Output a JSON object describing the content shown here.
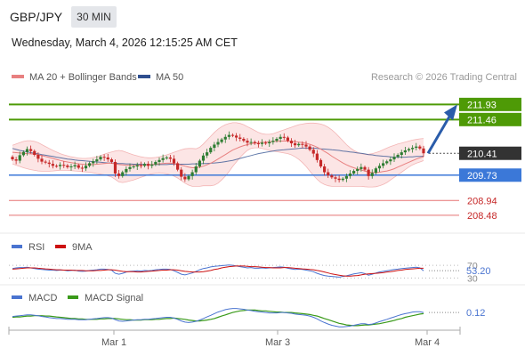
{
  "header": {
    "symbol": "GBP/JPY",
    "timeframe": "30 MIN",
    "timestamp": "Wednesday, March 4, 2026 12:15:25 AM CET"
  },
  "legend": {
    "ma20": "MA 20 + Bollinger Bands",
    "ma50": "MA 50",
    "credit": "Research © 2026 Trading Central"
  },
  "colors": {
    "resistance": "#4e9a06",
    "pivot": "#3b78d8",
    "support": "#e57373",
    "current": "#333333",
    "arrow": "#2a5caa",
    "ma20": "#e88080",
    "ma50": "#2f4f8f",
    "candle_up": "#2e7d32",
    "candle_down": "#c62828",
    "band_fill": "#fbdcdc",
    "rsi": "#4a74d0",
    "rsi_ma": "#cc1111",
    "macd": "#4a74d0",
    "macd_signal": "#3a9a1a"
  },
  "chart_data": {
    "type": "candlestick",
    "x_ticks": [
      "Mar 1",
      "Mar 3",
      "Mar 4"
    ],
    "ylim": [
      208.2,
      212.3
    ],
    "levels": [
      {
        "value": 211.93,
        "label": "211.93",
        "kind": "resistance"
      },
      {
        "value": 211.46,
        "label": "211.46",
        "kind": "resistance"
      },
      {
        "value": 210.41,
        "label": "210.41",
        "kind": "current"
      },
      {
        "value": 209.73,
        "label": "209.73",
        "kind": "pivot"
      },
      {
        "value": 208.94,
        "label": "208.94",
        "kind": "support"
      },
      {
        "value": 208.48,
        "label": "208.48",
        "kind": "support"
      }
    ],
    "close": [
      210.22,
      210.18,
      210.35,
      210.45,
      210.54,
      210.48,
      210.36,
      210.24,
      210.15,
      210.12,
      210.08,
      210.02,
      210.01,
      210.05,
      210.03,
      209.98,
      210.0,
      210.04,
      209.96,
      209.94,
      210.02,
      210.1,
      210.16,
      210.22,
      210.3,
      210.28,
      210.22,
      210.14,
      209.78,
      209.7,
      209.82,
      209.92,
      209.98,
      210.0,
      210.04,
      210.02,
      210.08,
      210.02,
      210.06,
      210.14,
      210.2,
      210.26,
      210.28,
      210.24,
      210.1,
      209.9,
      209.68,
      209.6,
      209.7,
      209.82,
      210.0,
      210.18,
      210.34,
      210.44,
      210.58,
      210.68,
      210.76,
      210.84,
      210.92,
      210.98,
      210.96,
      210.9,
      210.86,
      210.8,
      210.74,
      210.76,
      210.72,
      210.7,
      210.74,
      210.72,
      210.76,
      210.8,
      210.86,
      210.92,
      210.9,
      210.8,
      210.72,
      210.66,
      210.7,
      210.68,
      210.62,
      210.52,
      210.4,
      210.2,
      210.0,
      209.82,
      209.72,
      209.66,
      209.62,
      209.58,
      209.62,
      209.7,
      209.78,
      209.86,
      209.92,
      209.98,
      209.9,
      209.7,
      209.8,
      209.94,
      210.02,
      210.1,
      210.16,
      210.22,
      210.3,
      210.36,
      210.44,
      210.5,
      210.54,
      210.58,
      210.62,
      210.56,
      210.41
    ],
    "ma20": [
      210.44,
      210.43,
      210.42,
      210.41,
      210.4,
      210.39,
      210.38,
      210.36,
      210.34,
      210.31,
      210.28,
      210.25,
      210.22,
      210.19,
      210.16,
      210.14,
      210.12,
      210.1,
      210.08,
      210.07,
      210.06,
      210.06,
      210.06,
      210.07,
      210.08,
      210.09,
      210.1,
      210.1,
      210.08,
      210.06,
      210.05,
      210.04,
      210.04,
      210.04,
      210.04,
      210.04,
      210.04,
      210.05,
      210.06,
      210.07,
      210.08,
      210.09,
      210.1,
      210.1,
      210.09,
      210.07,
      210.04,
      210.01,
      209.98,
      209.96,
      209.96,
      209.98,
      210.01,
      210.05,
      210.1,
      210.16,
      210.23,
      210.3,
      210.37,
      210.44,
      210.51,
      210.56,
      210.61,
      210.65,
      210.68,
      210.71,
      210.73,
      210.74,
      210.75,
      210.76,
      210.77,
      210.78,
      210.78,
      210.79,
      210.79,
      210.79,
      210.78,
      210.77,
      210.76,
      210.74,
      210.72,
      210.69,
      210.65,
      210.6,
      210.54,
      210.47,
      210.4,
      210.32,
      210.25,
      210.18,
      210.11,
      210.05,
      210.0,
      209.96,
      209.92,
      209.89,
      209.86,
      209.83,
      209.81,
      209.81,
      209.82,
      209.84,
      209.86,
      209.89,
      209.93,
      209.98,
      210.03,
      210.08,
      210.13,
      210.18,
      210.23,
      210.27,
      210.3
    ],
    "bb_upper": [
      210.66,
      210.7,
      210.74,
      210.78,
      210.8,
      210.8,
      210.78,
      210.74,
      210.68,
      210.62,
      210.56,
      210.5,
      210.45,
      210.4,
      210.36,
      210.33,
      210.3,
      210.28,
      210.26,
      210.25,
      210.25,
      210.26,
      210.28,
      210.3,
      210.34,
      210.38,
      210.42,
      210.45,
      210.48,
      210.5,
      210.48,
      210.44,
      210.4,
      210.36,
      210.33,
      210.3,
      210.28,
      210.27,
      210.27,
      210.28,
      210.3,
      210.33,
      210.36,
      210.4,
      210.44,
      210.48,
      210.52,
      210.55,
      210.56,
      210.56,
      210.55,
      210.6,
      210.7,
      210.82,
      210.94,
      211.06,
      211.16,
      211.24,
      211.3,
      211.34,
      211.36,
      211.36,
      211.34,
      211.3,
      211.24,
      211.18,
      211.12,
      211.06,
      211.02,
      211.0,
      211.0,
      211.02,
      211.06,
      211.1,
      211.14,
      211.18,
      211.22,
      211.26,
      211.3,
      211.32,
      211.34,
      211.35,
      211.35,
      211.34,
      211.32,
      211.28,
      211.22,
      211.14,
      211.04,
      210.92,
      210.8,
      210.68,
      210.58,
      210.5,
      210.44,
      210.4,
      210.38,
      210.38,
      210.4,
      210.43,
      210.47,
      210.52,
      210.57,
      210.62,
      210.66,
      210.7,
      210.73,
      210.76,
      210.79,
      210.82,
      210.84,
      210.86,
      210.87
    ],
    "bb_lower": [
      210.08,
      210.04,
      210.0,
      209.96,
      209.93,
      209.9,
      209.88,
      209.86,
      209.85,
      209.85,
      209.85,
      209.86,
      209.87,
      209.88,
      209.88,
      209.88,
      209.87,
      209.86,
      209.85,
      209.84,
      209.83,
      209.82,
      209.8,
      209.78,
      209.76,
      209.74,
      209.71,
      209.67,
      209.6,
      209.52,
      209.5,
      209.52,
      209.55,
      209.58,
      209.62,
      209.66,
      209.7,
      209.74,
      209.77,
      209.79,
      209.8,
      209.79,
      209.77,
      209.74,
      209.7,
      209.64,
      209.56,
      209.48,
      209.42,
      209.38,
      209.38,
      209.38,
      209.4,
      209.4,
      209.4,
      209.42,
      209.48,
      209.58,
      209.7,
      209.84,
      210.0,
      210.14,
      210.28,
      210.4,
      210.5,
      210.56,
      210.58,
      210.58,
      210.56,
      210.53,
      210.5,
      210.48,
      210.46,
      210.44,
      210.42,
      210.4,
      210.36,
      210.3,
      210.22,
      210.12,
      210.0,
      209.86,
      209.72,
      209.6,
      209.5,
      209.44,
      209.4,
      209.38,
      209.38,
      209.38,
      209.38,
      209.38,
      209.38,
      209.38,
      209.38,
      209.38,
      209.37,
      209.36,
      209.36,
      209.37,
      209.4,
      209.44,
      209.5,
      209.58,
      209.66,
      209.74,
      209.82,
      209.9,
      209.98,
      210.05,
      210.1,
      210.14,
      210.18
    ],
    "ma50": [
      210.56,
      210.53,
      210.5,
      210.48,
      210.45,
      210.43,
      210.41,
      210.39,
      210.37,
      210.35,
      210.33,
      210.31,
      210.29,
      210.27,
      210.25,
      210.23,
      210.22,
      210.2,
      210.19,
      210.18,
      210.17,
      210.16,
      210.15,
      210.14,
      210.13,
      210.12,
      210.11,
      210.11,
      210.1,
      210.09,
      210.09,
      210.08,
      210.08,
      210.07,
      210.07,
      210.07,
      210.06,
      210.06,
      210.06,
      210.06,
      210.06,
      210.06,
      210.06,
      210.07,
      210.07,
      210.07,
      210.07,
      210.07,
      210.07,
      210.08,
      210.08,
      210.08,
      210.09,
      210.09,
      210.1,
      210.11,
      210.12,
      210.13,
      210.15,
      210.17,
      210.19,
      210.22,
      210.25,
      210.28,
      210.31,
      210.34,
      210.37,
      210.4,
      210.42,
      210.44,
      210.46,
      210.48,
      210.5,
      210.51,
      210.52,
      210.53,
      210.54,
      210.55,
      210.56,
      210.57,
      210.57,
      210.57,
      210.57,
      210.56,
      210.55,
      210.54,
      210.53,
      210.52,
      210.51,
      210.5,
      210.48,
      210.47,
      210.45,
      210.44,
      210.42,
      210.41,
      210.39,
      210.37,
      210.36,
      210.34,
      210.33,
      210.32,
      210.31,
      210.3,
      210.29,
      210.29,
      210.29,
      210.29,
      210.3,
      210.3,
      210.31,
      210.31,
      210.32
    ],
    "rsi": {
      "label": "RSI",
      "ma_label": "9MA",
      "last": "53.20",
      "levels": [
        70,
        30
      ],
      "values": [
        60,
        62,
        63,
        63,
        64,
        62,
        60,
        58,
        57,
        56,
        55,
        55,
        54,
        55,
        55,
        53,
        54,
        55,
        52,
        51,
        52,
        54,
        55,
        56,
        58,
        58,
        57,
        55,
        45,
        42,
        45,
        49,
        51,
        52,
        53,
        52,
        54,
        53,
        54,
        56,
        57,
        58,
        58,
        57,
        53,
        48,
        42,
        40,
        43,
        46,
        51,
        56,
        60,
        62,
        65,
        67,
        68,
        69,
        70,
        71,
        70,
        68,
        66,
        64,
        62,
        63,
        61,
        61,
        62,
        61,
        62,
        63,
        64,
        65,
        64,
        61,
        59,
        57,
        58,
        57,
        55,
        53,
        50,
        45,
        41,
        38,
        36,
        35,
        34,
        33,
        35,
        37,
        40,
        43,
        45,
        47,
        44,
        39,
        42,
        46,
        49,
        51,
        53,
        55,
        57,
        58,
        60,
        61,
        62,
        63,
        64,
        62,
        53
      ],
      "ma": [
        58,
        59,
        60,
        61,
        62,
        62,
        62,
        61,
        60,
        59,
        58,
        57,
        56,
        56,
        55,
        55,
        55,
        54,
        54,
        54,
        53,
        53,
        53,
        54,
        54,
        55,
        56,
        56,
        55,
        53,
        51,
        50,
        50,
        50,
        49,
        49,
        50,
        51,
        52,
        53,
        54,
        55,
        55,
        56,
        56,
        55,
        53,
        51,
        50,
        49,
        49,
        49,
        50,
        52,
        54,
        57,
        59,
        62,
        64,
        66,
        67,
        68,
        68,
        68,
        67,
        66,
        66,
        65,
        64,
        63,
        63,
        62,
        62,
        62,
        63,
        63,
        62,
        61,
        60,
        59,
        58,
        57,
        56,
        54,
        52,
        49,
        46,
        43,
        41,
        39,
        37,
        36,
        36,
        37,
        38,
        40,
        42,
        43,
        44,
        45,
        46,
        47,
        49,
        50,
        52,
        54,
        55,
        57,
        58,
        59,
        60,
        61,
        61
      ]
    },
    "macd": {
      "label": "MACD",
      "signal_label": "MACD Signal",
      "last": "0.12",
      "ylim": [
        -0.3,
        0.3
      ],
      "values": [
        0.02,
        0.03,
        0.04,
        0.05,
        0.06,
        0.06,
        0.05,
        0.04,
        0.02,
        0.01,
        -0.01,
        -0.02,
        -0.03,
        -0.03,
        -0.04,
        -0.05,
        -0.05,
        -0.05,
        -0.06,
        -0.06,
        -0.06,
        -0.05,
        -0.04,
        -0.03,
        -0.02,
        -0.01,
        -0.01,
        -0.02,
        -0.06,
        -0.09,
        -0.1,
        -0.09,
        -0.08,
        -0.07,
        -0.06,
        -0.06,
        -0.05,
        -0.05,
        -0.04,
        -0.03,
        -0.02,
        -0.01,
        0.0,
        0.0,
        -0.02,
        -0.05,
        -0.09,
        -0.12,
        -0.13,
        -0.12,
        -0.1,
        -0.07,
        -0.03,
        0.01,
        0.05,
        0.09,
        0.13,
        0.16,
        0.19,
        0.21,
        0.22,
        0.22,
        0.21,
        0.2,
        0.18,
        0.17,
        0.15,
        0.14,
        0.13,
        0.12,
        0.11,
        0.11,
        0.11,
        0.12,
        0.12,
        0.11,
        0.1,
        0.08,
        0.07,
        0.06,
        0.05,
        0.03,
        0.0,
        -0.04,
        -0.09,
        -0.13,
        -0.17,
        -0.2,
        -0.22,
        -0.24,
        -0.24,
        -0.23,
        -0.22,
        -0.2,
        -0.18,
        -0.16,
        -0.16,
        -0.18,
        -0.17,
        -0.14,
        -0.11,
        -0.08,
        -0.05,
        -0.02,
        0.01,
        0.04,
        0.07,
        0.09,
        0.11,
        0.13,
        0.14,
        0.14,
        0.12
      ],
      "signal": [
        0.0,
        0.01,
        0.01,
        0.02,
        0.03,
        0.03,
        0.04,
        0.04,
        0.04,
        0.03,
        0.03,
        0.02,
        0.01,
        0.0,
        -0.01,
        -0.02,
        -0.03,
        -0.03,
        -0.04,
        -0.04,
        -0.05,
        -0.05,
        -0.05,
        -0.05,
        -0.04,
        -0.04,
        -0.03,
        -0.03,
        -0.03,
        -0.04,
        -0.05,
        -0.06,
        -0.06,
        -0.07,
        -0.07,
        -0.07,
        -0.06,
        -0.06,
        -0.06,
        -0.05,
        -0.05,
        -0.04,
        -0.03,
        -0.03,
        -0.02,
        -0.03,
        -0.04,
        -0.05,
        -0.07,
        -0.08,
        -0.09,
        -0.09,
        -0.08,
        -0.07,
        -0.05,
        -0.03,
        0.0,
        0.03,
        0.06,
        0.09,
        0.12,
        0.14,
        0.16,
        0.17,
        0.18,
        0.18,
        0.18,
        0.17,
        0.16,
        0.16,
        0.15,
        0.14,
        0.13,
        0.13,
        0.12,
        0.12,
        0.12,
        0.11,
        0.1,
        0.09,
        0.08,
        0.07,
        0.05,
        0.03,
        0.0,
        -0.03,
        -0.06,
        -0.09,
        -0.12,
        -0.15,
        -0.17,
        -0.19,
        -0.2,
        -0.21,
        -0.21,
        -0.2,
        -0.19,
        -0.19,
        -0.18,
        -0.17,
        -0.16,
        -0.14,
        -0.12,
        -0.1,
        -0.08,
        -0.05,
        -0.03,
        0.0,
        0.02,
        0.04,
        0.06,
        0.08,
        0.09
      ]
    }
  }
}
